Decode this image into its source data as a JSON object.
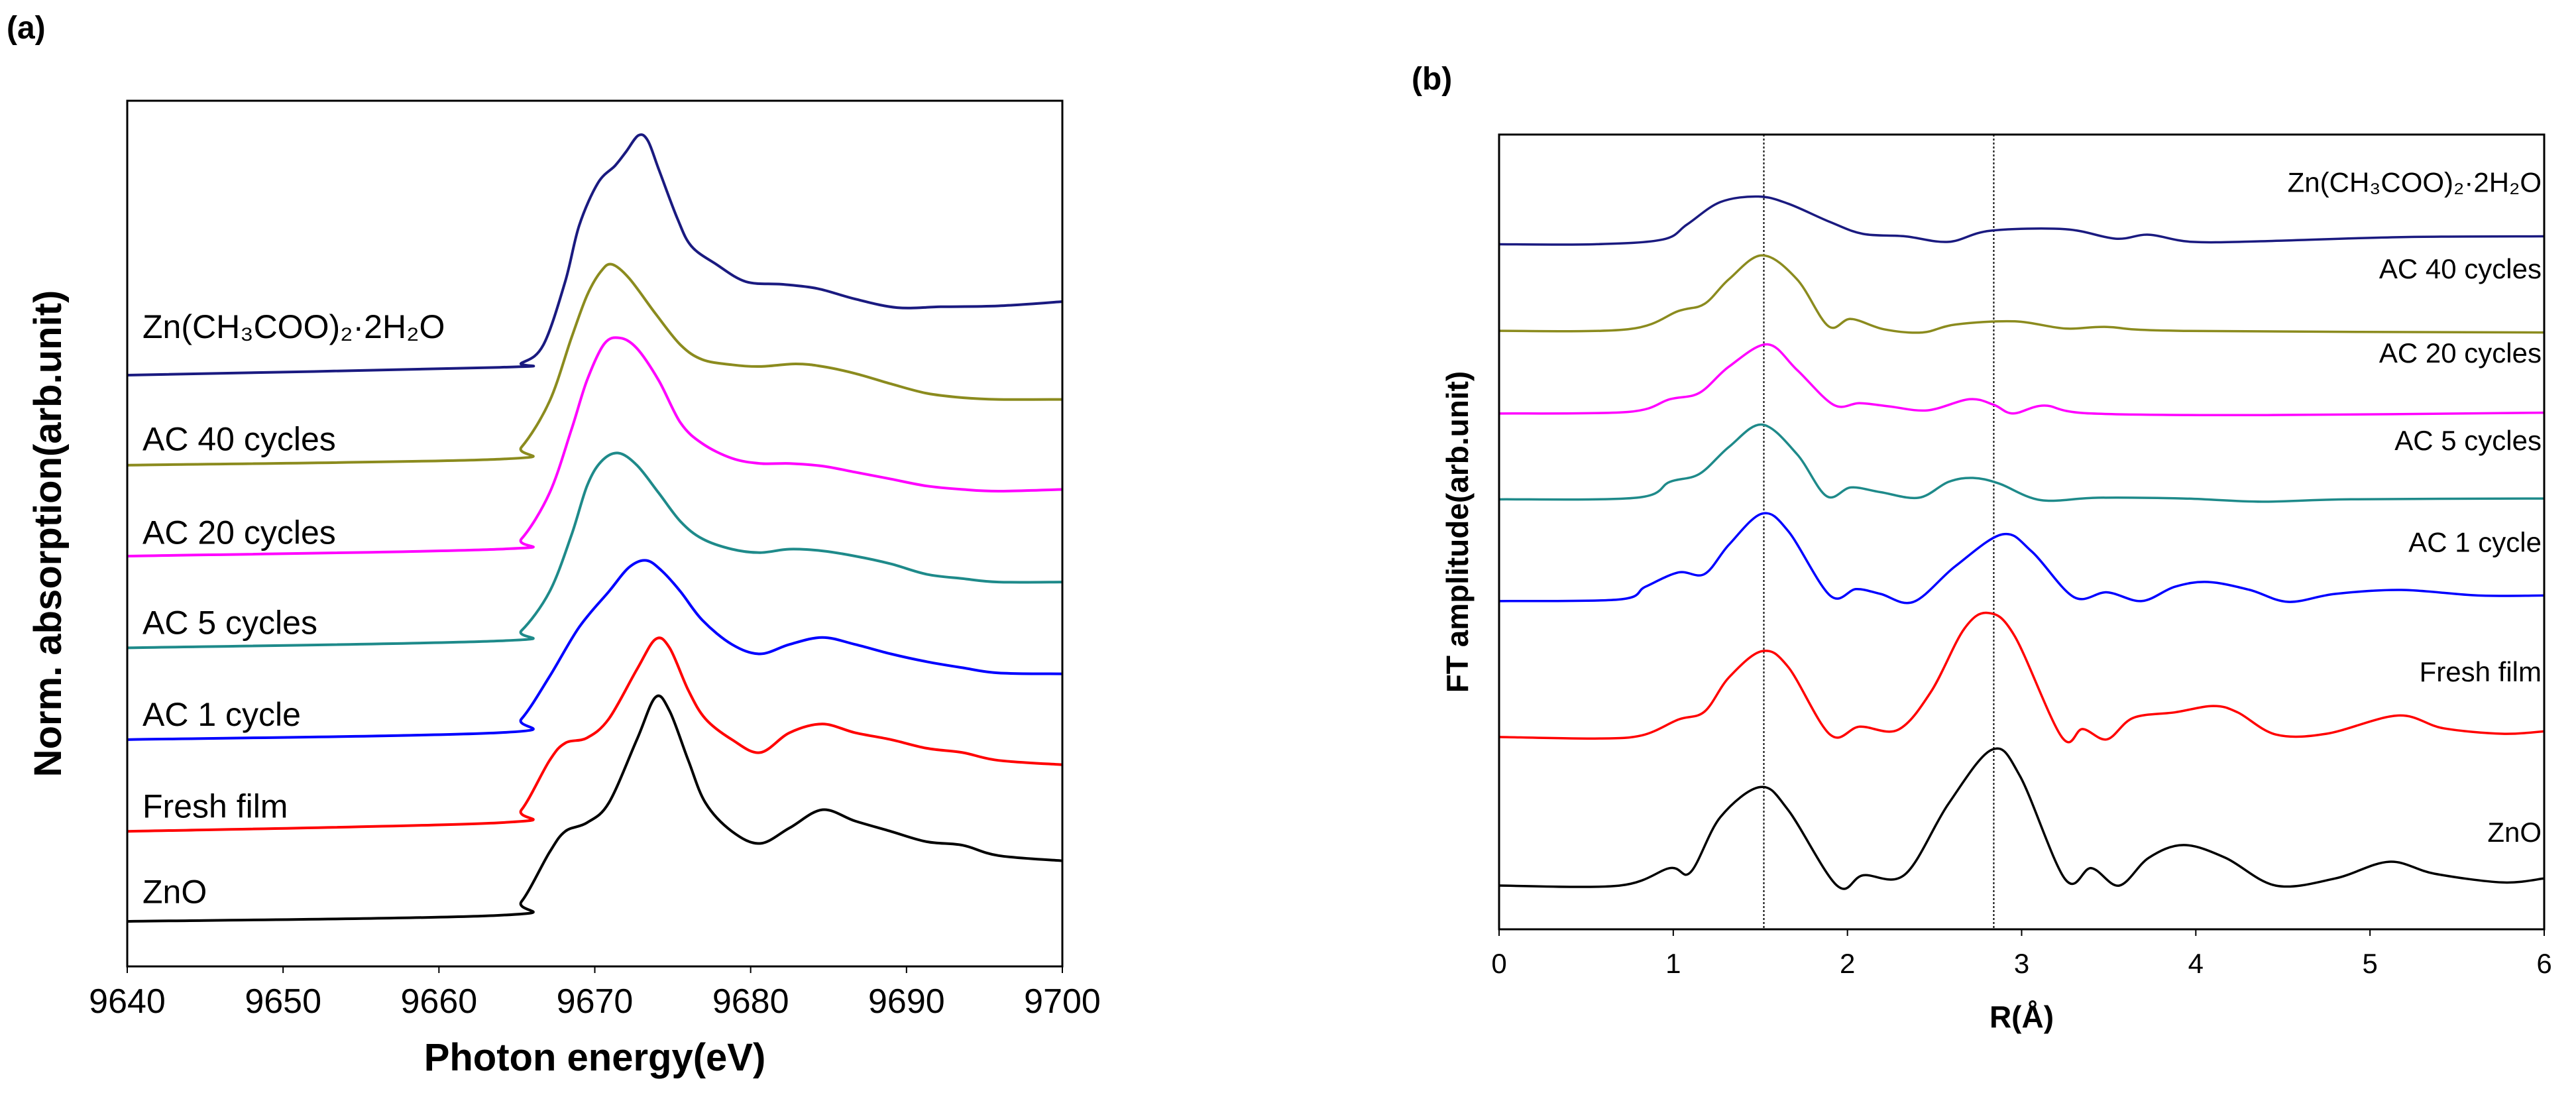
{
  "chart_data": [
    {
      "panel_label": "(a)",
      "type": "line",
      "title": "",
      "xlabel": "Photon energy(eV)",
      "ylabel": "Norm. absorption(arb.unit)",
      "xlim": [
        9640,
        9700
      ],
      "ylim": [
        0,
        100
      ],
      "xticks": [
        "9640",
        "9650",
        "9660",
        "9670",
        "9680",
        "9690",
        "9700"
      ],
      "grid": false,
      "legend": "inline labels at left above each curve",
      "series": [
        {
          "name": "ZnO",
          "color": "#000000",
          "x": [
            9640,
            9663.9,
            9665.3,
            9667.1,
            9668.1,
            9669.5,
            9670.9,
            9672.7,
            9673.9,
            9674.8,
            9676.0,
            9677.1,
            9678.8,
            9680.6,
            9682.5,
            9684.6,
            9686.7,
            9689.0,
            9691.3,
            9693.6,
            9695.9,
            9700
          ],
          "y": [
            5.2,
            5.9,
            7.5,
            13.2,
            15.6,
            16.6,
            18.9,
            26.2,
            31.1,
            29.5,
            23.8,
            18.9,
            15.6,
            14.2,
            16.0,
            18.1,
            16.8,
            15.6,
            14.4,
            14.0,
            12.8,
            12.2
          ]
        },
        {
          "name": "Fresh film",
          "color": "#ff0000",
          "x": [
            9640,
            9663.9,
            9665.3,
            9667.1,
            9668.1,
            9669.5,
            9670.9,
            9672.7,
            9673.9,
            9674.8,
            9676.0,
            9677.1,
            9678.8,
            9680.6,
            9682.5,
            9684.6,
            9686.7,
            9689.0,
            9691.3,
            9693.6,
            9695.9,
            9700
          ],
          "y": [
            15.6,
            16.6,
            18.1,
            23.8,
            25.8,
            26.4,
            28.6,
            34.3,
            37.8,
            36.8,
            31.9,
            28.6,
            26.2,
            24.7,
            27.0,
            28.0,
            27.0,
            26.2,
            25.2,
            24.7,
            23.8,
            23.3
          ]
        },
        {
          "name": "AC 1 cycle",
          "color": "#0000ff",
          "x": [
            9640,
            9663.9,
            9665.3,
            9667.1,
            9669.0,
            9670.9,
            9672.2,
            9673.3,
            9674.3,
            9675.5,
            9676.9,
            9678.8,
            9680.6,
            9682.5,
            9684.6,
            9686.7,
            9689.0,
            9691.3,
            9693.6,
            9695.9,
            9700
          ],
          "y": [
            26.2,
            27.0,
            28.6,
            33.5,
            39.2,
            43.3,
            46.1,
            46.9,
            45.7,
            43.3,
            40.0,
            37.2,
            36.1,
            37.2,
            38.0,
            37.2,
            36.1,
            35.2,
            34.5,
            33.9,
            33.8
          ]
        },
        {
          "name": "AC 5 cycles",
          "color": "#1e8a8a",
          "x": [
            9640,
            9663.9,
            9665.3,
            9667.1,
            9668.5,
            9669.5,
            9670.4,
            9671.5,
            9672.7,
            9674.1,
            9675.5,
            9676.9,
            9678.8,
            9680.6,
            9682.5,
            9684.6,
            9686.7,
            9689.0,
            9691.3,
            9693.6,
            9695.9,
            9700
          ],
          "y": [
            36.8,
            37.6,
            38.8,
            43.3,
            49.8,
            55.5,
            58.3,
            59.3,
            57.9,
            54.7,
            51.4,
            49.4,
            48.2,
            47.8,
            48.2,
            48.0,
            47.4,
            46.5,
            45.3,
            44.8,
            44.4,
            44.4
          ]
        },
        {
          "name": "AC 20 cycles",
          "color": "#ff00ff",
          "x": [
            9640,
            9663.9,
            9665.3,
            9667.1,
            9668.5,
            9669.5,
            9670.6,
            9671.6,
            9672.7,
            9674.1,
            9675.5,
            9676.9,
            9678.8,
            9680.6,
            9682.5,
            9684.6,
            9686.7,
            9689.0,
            9691.3,
            9693.6,
            9695.9,
            9700
          ],
          "y": [
            47.4,
            48.2,
            49.4,
            54.7,
            62.0,
            67.7,
            71.9,
            72.6,
            71.4,
            67.7,
            62.8,
            60.4,
            58.7,
            58.1,
            58.1,
            57.8,
            57.1,
            56.3,
            55.5,
            55.1,
            54.9,
            55.1
          ]
        },
        {
          "name": "AC 40 cycles",
          "color": "#8b8b1e",
          "x": [
            9640,
            9663.9,
            9665.3,
            9667.1,
            9668.5,
            9669.5,
            9670.4,
            9671.1,
            9672.2,
            9673.9,
            9675.5,
            9676.9,
            9678.8,
            9680.6,
            9682.9,
            9684.6,
            9686.7,
            9689.0,
            9691.3,
            9693.6,
            9695.9,
            9700
          ],
          "y": [
            57.9,
            58.6,
            60.0,
            65.3,
            72.6,
            77.5,
            80.3,
            81.1,
            79.5,
            75.4,
            71.8,
            70.1,
            69.5,
            69.3,
            69.6,
            69.3,
            68.5,
            67.3,
            66.2,
            65.7,
            65.5,
            65.5
          ]
        },
        {
          "name": "Zn(CH₃COO)₂·2H₂O",
          "color": "#1a1a80",
          "x": [
            9640,
            9663.9,
            9665.3,
            9666.7,
            9668.1,
            9669.0,
            9670.2,
            9671.3,
            9672.0,
            9672.8,
            9673.4,
            9674.1,
            9675.3,
            9676.2,
            9677.8,
            9679.7,
            9682.0,
            9684.3,
            9686.7,
            9689.4,
            9692.2,
            9695.9,
            9700
          ],
          "y": [
            68.3,
            69.2,
            69.7,
            71.8,
            79.1,
            85.6,
            90.5,
            92.5,
            94.1,
            96.0,
            95.4,
            92.1,
            86.4,
            83.2,
            81.1,
            79.1,
            78.8,
            78.3,
            77.1,
            76.1,
            76.2,
            76.3,
            76.8
          ]
        }
      ]
    },
    {
      "panel_label": "(b)",
      "type": "line",
      "title": "",
      "xlabel": "R(Å)",
      "ylabel": "FT amplitude(arb.unit)",
      "xlim": [
        0,
        6
      ],
      "ylim": [
        0,
        100
      ],
      "xticks": [
        "0",
        "1",
        "2",
        "3",
        "4",
        "5",
        "6"
      ],
      "grid": false,
      "reference_lines_x": [
        1.52,
        2.84
      ],
      "legend": "inline labels at right above each curve",
      "series": [
        {
          "name": "ZnO",
          "color": "#000000",
          "x": [
            0,
            0.69,
            0.98,
            1.1,
            1.27,
            1.5,
            1.66,
            1.94,
            2.09,
            2.33,
            2.58,
            2.83,
            2.99,
            3.25,
            3.4,
            3.56,
            3.73,
            3.93,
            4.17,
            4.46,
            4.8,
            5.11,
            5.37,
            5.76,
            6
          ],
          "y": [
            5.5,
            5.5,
            7.7,
            7.2,
            14.1,
            17.9,
            15.0,
            5.5,
            6.8,
            6.9,
            15.8,
            22.6,
            19.3,
            6.3,
            7.7,
            5.5,
            9.0,
            10.6,
            9.0,
            5.5,
            6.4,
            8.5,
            7.0,
            5.9,
            6.4
          ]
        },
        {
          "name": "Fresh film",
          "color": "#ff0000",
          "x": [
            0,
            0.55,
            0.82,
            1.03,
            1.18,
            1.32,
            1.51,
            1.66,
            1.9,
            2.07,
            2.29,
            2.48,
            2.67,
            2.81,
            2.96,
            3.23,
            3.35,
            3.49,
            3.64,
            3.88,
            4.1,
            4.24,
            4.46,
            4.75,
            5.16,
            5.42,
            5.76,
            6
          ],
          "y": [
            24.2,
            24.0,
            24.4,
            26.4,
            27.4,
            31.7,
            35.0,
            33.0,
            24.5,
            25.5,
            25.1,
            29.9,
            37.8,
            39.8,
            36.9,
            24.2,
            25.2,
            23.9,
            26.6,
            27.3,
            28.1,
            27.3,
            24.5,
            24.6,
            26.9,
            25.3,
            24.6,
            24.9
          ]
        },
        {
          "name": "AC 1 cycle",
          "color": "#0000ff",
          "x": [
            0,
            0.69,
            0.84,
            1.03,
            1.18,
            1.32,
            1.51,
            1.66,
            1.9,
            2.05,
            2.19,
            2.38,
            2.62,
            2.89,
            3.06,
            3.3,
            3.49,
            3.69,
            3.88,
            4.07,
            4.31,
            4.53,
            4.8,
            5.18,
            5.62,
            6
          ],
          "y": [
            41.3,
            41.5,
            43.1,
            44.9,
            44.7,
            48.4,
            52.3,
            50.1,
            42.0,
            42.8,
            42.2,
            41.2,
            45.7,
            49.7,
            47.5,
            41.8,
            42.4,
            41.3,
            43.1,
            43.7,
            42.7,
            41.2,
            42.2,
            42.7,
            42.0,
            42.0
          ]
        },
        {
          "name": "AC 5 cycles",
          "color": "#1e8a8a",
          "x": [
            0,
            0.79,
            0.98,
            1.15,
            1.32,
            1.51,
            1.71,
            1.88,
            2.02,
            2.19,
            2.41,
            2.58,
            2.72,
            2.87,
            3.11,
            3.44,
            3.93,
            4.38,
            4.89,
            6
          ],
          "y": [
            54.1,
            54.3,
            56.3,
            57.3,
            60.7,
            63.5,
            59.8,
            54.5,
            55.6,
            55.0,
            54.3,
            56.3,
            56.8,
            56.1,
            54.0,
            54.3,
            54.2,
            53.8,
            54.1,
            54.2
          ]
        },
        {
          "name": "AC 20 cycles",
          "color": "#ff00ff",
          "x": [
            0,
            0.74,
            0.98,
            1.15,
            1.32,
            1.54,
            1.71,
            1.92,
            2.07,
            2.24,
            2.46,
            2.7,
            2.84,
            2.95,
            3.13,
            3.4,
            4.41,
            6
          ],
          "y": [
            64.9,
            65.1,
            66.7,
            67.5,
            70.8,
            73.6,
            70.4,
            66.0,
            66.2,
            65.8,
            65.3,
            66.7,
            66.0,
            64.9,
            65.9,
            64.9,
            64.7,
            65.0
          ]
        },
        {
          "name": "AC 40 cycles",
          "color": "#8b8b1e",
          "x": [
            0,
            0.74,
            1.03,
            1.18,
            1.32,
            1.51,
            1.71,
            1.89,
            2.02,
            2.21,
            2.43,
            2.62,
            2.96,
            3.25,
            3.49,
            3.93,
            6
          ],
          "y": [
            75.3,
            75.5,
            77.8,
            78.7,
            81.8,
            84.8,
            81.8,
            75.9,
            76.8,
            75.5,
            75.1,
            76.1,
            76.5,
            75.6,
            75.8,
            75.3,
            75.1
          ]
        },
        {
          "name": "Zn(CH₃COO)₂·2H₂O",
          "color": "#1a1a80",
          "x": [
            0,
            0.55,
            0.94,
            1.08,
            1.27,
            1.49,
            1.66,
            1.9,
            2.09,
            2.33,
            2.58,
            2.82,
            3.25,
            3.54,
            3.73,
            3.98,
            4.41,
            5.18,
            6
          ],
          "y": [
            86.2,
            86.2,
            86.8,
            88.7,
            91.5,
            92.2,
            91.3,
            89.0,
            87.5,
            87.2,
            86.5,
            87.9,
            88.1,
            86.9,
            87.4,
            86.5,
            86.6,
            87.1,
            87.2
          ]
        }
      ]
    }
  ]
}
